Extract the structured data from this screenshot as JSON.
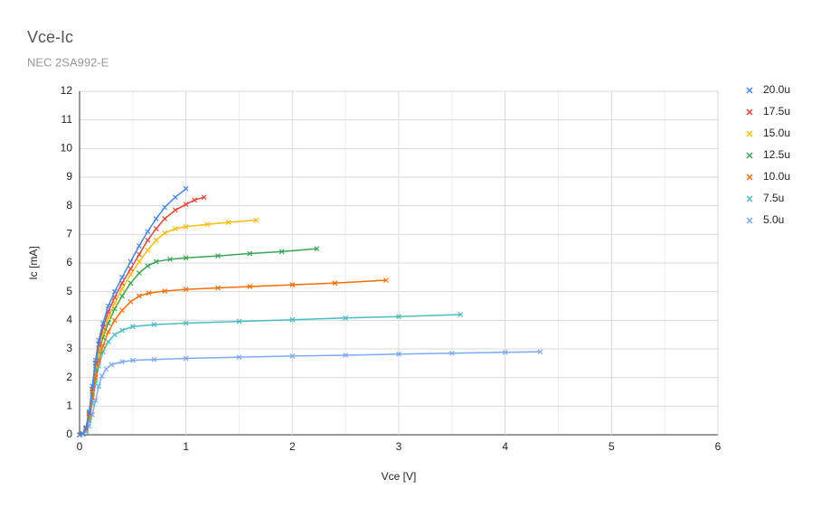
{
  "chart_data": {
    "type": "line",
    "title": "Vce-Ic",
    "subtitle": "NEC 2SA992-E",
    "x_label": "Vce [V]",
    "y_label": "Ic [mA]",
    "xlim": [
      0,
      6
    ],
    "xticks": [
      0,
      1,
      2,
      3,
      4,
      5,
      6
    ],
    "ylim": [
      0,
      12
    ],
    "yticks": [
      0,
      1,
      2,
      3,
      4,
      5,
      6,
      7,
      8,
      9,
      10,
      11,
      12
    ],
    "grid": true,
    "legend": "right",
    "marker": "x",
    "series": [
      {
        "name": "20.0u",
        "color": "#4285f4",
        "x": [
          0,
          0.03,
          0.06,
          0.09,
          0.12,
          0.15,
          0.18,
          0.22,
          0.27,
          0.33,
          0.4,
          0.48,
          0.56,
          0.64,
          0.72,
          0.8,
          0.9,
          1.0
        ],
        "values": [
          0,
          0.04,
          0.25,
          0.8,
          1.7,
          2.6,
          3.3,
          3.9,
          4.5,
          5.0,
          5.5,
          6.05,
          6.6,
          7.1,
          7.55,
          7.95,
          8.3,
          8.6
        ]
      },
      {
        "name": "17.5u",
        "color": "#ea4335",
        "x": [
          0,
          0.03,
          0.06,
          0.09,
          0.12,
          0.15,
          0.18,
          0.22,
          0.27,
          0.33,
          0.4,
          0.48,
          0.56,
          0.64,
          0.72,
          0.8,
          0.9,
          1.0,
          1.08,
          1.17
        ],
        "values": [
          0,
          0.04,
          0.22,
          0.75,
          1.6,
          2.5,
          3.15,
          3.75,
          4.3,
          4.8,
          5.3,
          5.8,
          6.3,
          6.8,
          7.2,
          7.55,
          7.85,
          8.05,
          8.2,
          8.3
        ]
      },
      {
        "name": "15.0u",
        "color": "#fbbc04",
        "x": [
          0,
          0.03,
          0.06,
          0.09,
          0.12,
          0.15,
          0.18,
          0.22,
          0.27,
          0.33,
          0.4,
          0.48,
          0.56,
          0.64,
          0.72,
          0.8,
          0.9,
          1.0,
          1.2,
          1.4,
          1.66
        ],
        "values": [
          0,
          0.03,
          0.2,
          0.72,
          1.55,
          2.4,
          3.0,
          3.55,
          4.1,
          4.6,
          5.1,
          5.6,
          6.05,
          6.45,
          6.8,
          7.05,
          7.2,
          7.27,
          7.35,
          7.42,
          7.5
        ]
      },
      {
        "name": "12.5u",
        "color": "#34a853",
        "x": [
          0,
          0.03,
          0.06,
          0.09,
          0.12,
          0.15,
          0.18,
          0.22,
          0.27,
          0.33,
          0.4,
          0.48,
          0.56,
          0.64,
          0.72,
          0.85,
          1.0,
          1.3,
          1.6,
          1.9,
          2.23
        ],
        "values": [
          0,
          0.03,
          0.2,
          0.7,
          1.5,
          2.3,
          2.9,
          3.4,
          3.9,
          4.4,
          4.85,
          5.3,
          5.65,
          5.9,
          6.05,
          6.13,
          6.18,
          6.25,
          6.33,
          6.4,
          6.5
        ]
      },
      {
        "name": "10.0u",
        "color": "#ff6d01",
        "x": [
          0,
          0.03,
          0.06,
          0.09,
          0.12,
          0.15,
          0.18,
          0.22,
          0.27,
          0.33,
          0.4,
          0.48,
          0.56,
          0.65,
          0.8,
          1.0,
          1.3,
          1.6,
          2.0,
          2.4,
          2.88
        ],
        "values": [
          0,
          0.03,
          0.2,
          0.6,
          1.3,
          2.0,
          2.6,
          3.1,
          3.6,
          4.0,
          4.35,
          4.65,
          4.85,
          4.95,
          5.02,
          5.08,
          5.13,
          5.18,
          5.24,
          5.3,
          5.4
        ]
      },
      {
        "name": "7.5u",
        "color": "#46bdc6",
        "x": [
          0,
          0.03,
          0.06,
          0.09,
          0.12,
          0.15,
          0.18,
          0.22,
          0.27,
          0.33,
          0.4,
          0.5,
          0.7,
          1.0,
          1.5,
          2.0,
          2.5,
          3.0,
          3.58
        ],
        "values": [
          0,
          0.02,
          0.15,
          0.5,
          1.1,
          1.8,
          2.4,
          2.9,
          3.25,
          3.5,
          3.65,
          3.78,
          3.85,
          3.9,
          3.96,
          4.02,
          4.08,
          4.13,
          4.2
        ]
      },
      {
        "name": "5.0u",
        "color": "#7baaf7",
        "x": [
          0,
          0.03,
          0.06,
          0.09,
          0.12,
          0.15,
          0.18,
          0.21,
          0.25,
          0.3,
          0.4,
          0.5,
          0.7,
          1.0,
          1.5,
          2.0,
          2.5,
          3.0,
          3.5,
          4.0,
          4.33
        ],
        "values": [
          0,
          0.02,
          0.1,
          0.3,
          0.7,
          1.2,
          1.7,
          2.05,
          2.3,
          2.45,
          2.55,
          2.6,
          2.63,
          2.67,
          2.71,
          2.75,
          2.78,
          2.82,
          2.85,
          2.88,
          2.9
        ]
      }
    ]
  }
}
